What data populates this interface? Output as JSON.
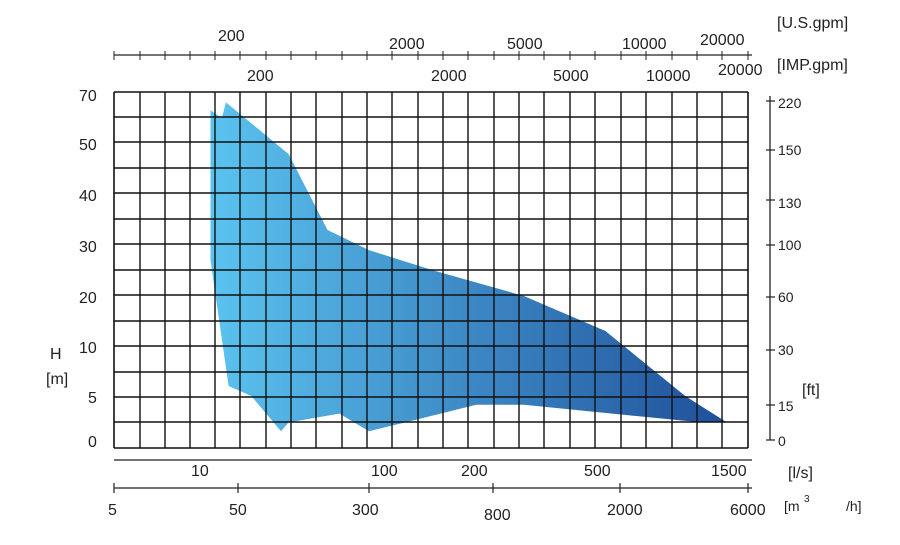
{
  "chart_data": {
    "type": "area",
    "title": "",
    "y_axis_left": {
      "label_top": "H",
      "label_bottom": "[m]",
      "ticks": [
        "70",
        "50",
        "40",
        "30",
        "20",
        "10",
        "5",
        "0"
      ]
    },
    "y_axis_right": {
      "unit": "[ft]",
      "ticks": [
        "220",
        "150",
        "130",
        "100",
        "60",
        "30",
        "15",
        "0"
      ]
    },
    "x_axis_top_usgpm": {
      "unit": "[U.S.gpm]",
      "ticks": [
        "200",
        "2000",
        "5000",
        "10000",
        "20000"
      ]
    },
    "x_axis_top_impgpm": {
      "unit": "[IMP.gpm]",
      "ticks": [
        "200",
        "2000",
        "5000",
        "10000",
        "20000"
      ]
    },
    "x_axis_bottom_ls": {
      "unit": "[l/s]",
      "ticks": [
        "10",
        "100",
        "200",
        "500",
        "1500"
      ]
    },
    "x_axis_bottom_m3h": {
      "unit_part1": "[m",
      "unit_sup": "3",
      "unit_part2": "/h]",
      "ticks": [
        "5",
        "50",
        "300",
        "800",
        "2000",
        "6000"
      ]
    },
    "grid": true,
    "colors": {
      "gradient_start": "#5bc3ef",
      "gradient_end": "#1f4f9a",
      "grid": "#111111",
      "background": "#ffffff"
    },
    "envelope": {
      "description_unit_x": "m3/h",
      "description_unit_y": "m",
      "points": [
        [
          30,
          27
        ],
        [
          30,
          63
        ],
        [
          37,
          60
        ],
        [
          40,
          66
        ],
        [
          60,
          58
        ],
        [
          100,
          48
        ],
        [
          170,
          33
        ],
        [
          300,
          29
        ],
        [
          500,
          25
        ],
        [
          1000,
          20
        ],
        [
          1800,
          13
        ],
        [
          3500,
          5
        ],
        [
          5000,
          2
        ],
        [
          4000,
          2
        ],
        [
          1000,
          4
        ],
        [
          700,
          4
        ],
        [
          400,
          2
        ],
        [
          300,
          1
        ],
        [
          200,
          3
        ],
        [
          100,
          2
        ],
        [
          90,
          1
        ],
        [
          60,
          5
        ],
        [
          42,
          6
        ]
      ]
    }
  }
}
